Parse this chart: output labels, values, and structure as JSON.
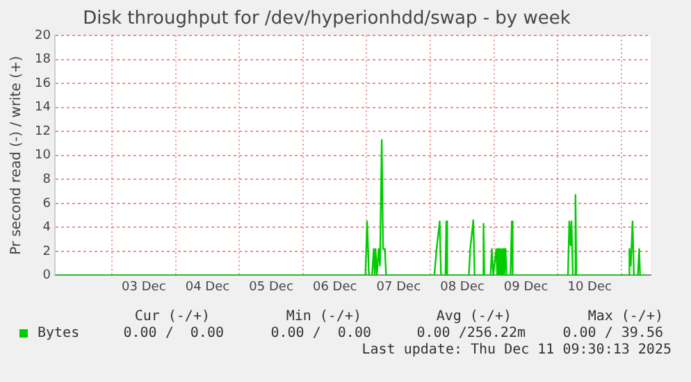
{
  "chart_data": {
    "type": "line",
    "title": "Disk throughput for /dev/hyperionhdd/swap - by week",
    "ylabel": "Pr second read (-) / write (+)",
    "x": [
      "2025-12-02T02:30",
      "2025-12-06T23:30",
      "2025-12-07T00:10",
      "2025-12-07T00:50",
      "2025-12-07T02:00",
      "2025-12-07T02:40",
      "2025-12-07T03:00",
      "2025-12-07T03:20",
      "2025-12-07T03:50",
      "2025-12-07T04:30",
      "2025-12-07T05:00",
      "2025-12-07T05:40",
      "2025-12-07T06:10",
      "2025-12-07T06:50",
      "2025-12-07T07:20",
      "2025-12-08T01:30",
      "2025-12-08T02:20",
      "2025-12-08T03:30",
      "2025-12-08T04:00",
      "2025-12-08T05:40",
      "2025-12-08T06:00",
      "2025-12-08T06:20",
      "2025-12-08T14:30",
      "2025-12-08T15:00",
      "2025-12-08T16:10",
      "2025-12-08T16:40",
      "2025-12-08T19:40",
      "2025-12-08T20:00",
      "2025-12-08T20:20",
      "2025-12-08T22:40",
      "2025-12-08T23:10",
      "2025-12-08T23:40",
      "2025-12-09T00:50",
      "2025-12-09T01:10",
      "2025-12-09T01:30",
      "2025-12-09T01:50",
      "2025-12-09T02:10",
      "2025-12-09T02:30",
      "2025-12-09T02:50",
      "2025-12-09T03:10",
      "2025-12-09T03:30",
      "2025-12-09T03:50",
      "2025-12-09T04:20",
      "2025-12-09T04:40",
      "2025-12-09T06:10",
      "2025-12-09T06:40",
      "2025-12-09T07:00",
      "2025-12-10T03:50",
      "2025-12-10T04:20",
      "2025-12-10T04:50",
      "2025-12-10T05:10",
      "2025-12-10T05:40",
      "2025-12-10T06:20",
      "2025-12-10T06:40",
      "2025-12-10T07:00",
      "2025-12-11T02:40",
      "2025-12-11T03:00",
      "2025-12-11T03:30",
      "2025-12-11T04:10",
      "2025-12-11T04:40",
      "2025-12-11T06:10",
      "2025-12-11T06:40",
      "2025-12-11T07:00",
      "2025-12-11T09:30"
    ],
    "series": [
      {
        "name": "Bytes",
        "color": "#00cc00",
        "values": [
          0,
          0,
          4.5,
          0,
          0,
          2.2,
          0,
          2.2,
          0,
          2.2,
          0.8,
          11.3,
          2.2,
          2.2,
          0,
          0,
          2.2,
          4.5,
          0,
          0,
          4.5,
          0,
          0,
          2.2,
          4.6,
          0,
          0,
          4.3,
          0,
          0,
          2.2,
          0,
          2.2,
          0,
          2.2,
          0,
          2.2,
          0,
          2.2,
          0,
          2.2,
          0,
          2.2,
          0,
          0,
          4.5,
          0,
          0,
          4.5,
          2.5,
          4.5,
          0,
          0,
          6.7,
          0,
          0,
          2.2,
          0.8,
          4.5,
          0,
          0,
          2.2,
          0,
          0
        ]
      }
    ],
    "xlim": [
      "2025-12-02T02:30",
      "2025-12-11T11:00"
    ],
    "xticks": [
      {
        "value": "2025-12-03T00:00",
        "label": null
      },
      {
        "value": "2025-12-03T12:00",
        "label": "03 Dec"
      },
      {
        "value": "2025-12-04T00:00",
        "label": null
      },
      {
        "value": "2025-12-04T12:00",
        "label": "04 Dec"
      },
      {
        "value": "2025-12-05T00:00",
        "label": null
      },
      {
        "value": "2025-12-05T12:00",
        "label": "05 Dec"
      },
      {
        "value": "2025-12-06T00:00",
        "label": null
      },
      {
        "value": "2025-12-06T12:00",
        "label": "06 Dec"
      },
      {
        "value": "2025-12-07T00:00",
        "label": null
      },
      {
        "value": "2025-12-07T12:00",
        "label": "07 Dec"
      },
      {
        "value": "2025-12-08T00:00",
        "label": null
      },
      {
        "value": "2025-12-08T12:00",
        "label": "08 Dec"
      },
      {
        "value": "2025-12-09T00:00",
        "label": null
      },
      {
        "value": "2025-12-09T12:00",
        "label": "09 Dec"
      },
      {
        "value": "2025-12-10T00:00",
        "label": null
      },
      {
        "value": "2025-12-10T12:00",
        "label": "10 Dec"
      },
      {
        "value": "2025-12-11T00:00",
        "label": null
      }
    ],
    "ylim": [
      0,
      20
    ],
    "yticks": [
      0,
      2,
      4,
      6,
      8,
      10,
      12,
      14,
      16,
      18,
      20
    ],
    "grid": true,
    "legend": "bottom left",
    "marker": "none",
    "line_style": "solid",
    "annotations": [
      "Cur (-/+)",
      "Min (-/+)",
      "Avg (-/+)",
      "Max (-/+)",
      "0.00 /  0.00",
      "0.00 /  0.00",
      "0.00 /256.22m",
      "0.00 / 39.56",
      "Last update: Thu Dec 11 09:30:13 2025"
    ]
  }
}
